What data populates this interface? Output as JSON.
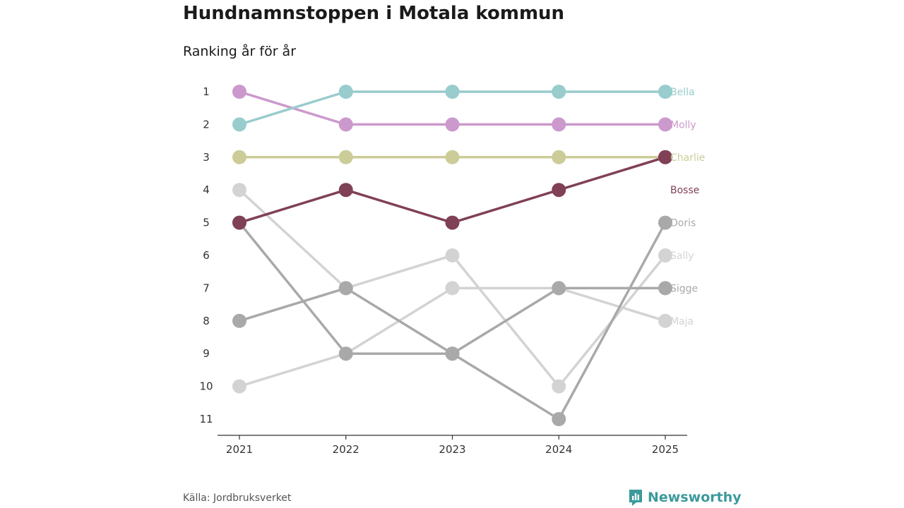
{
  "header": {
    "title": "Hundnamnstoppen i Motala kommun",
    "subtitle": "Ranking år för år"
  },
  "footer": {
    "source": "Källa: Jordbruksverket",
    "brand": "Newsworthy",
    "brand_icon": "newsworthy-logo-icon"
  },
  "colors": {
    "axis": "#333333",
    "background": "#ffffff",
    "brand": "#3c9a9b"
  },
  "chart_data": {
    "type": "line",
    "subtype": "bump",
    "title": "Hundnamnstoppen i Motala kommun",
    "subtitle": "Ranking år för år",
    "x": [
      "2021",
      "2022",
      "2023",
      "2024",
      "2025"
    ],
    "y_ticks": [
      1,
      2,
      3,
      4,
      5,
      6,
      7,
      8,
      9,
      10,
      11
    ],
    "ylim": [
      1,
      11
    ],
    "y_inverted": true,
    "xlabel": "",
    "ylabel": "",
    "grid": false,
    "series": [
      {
        "name": "Sally",
        "color": "#d3d3d3",
        "values": [
          4,
          7,
          6,
          10,
          6
        ]
      },
      {
        "name": "Maja",
        "color": "#d3d3d3",
        "values": [
          10,
          9,
          7,
          7,
          8
        ]
      },
      {
        "name": "Doris",
        "color": "#a9a9a9",
        "values": [
          5,
          9,
          9,
          11,
          5
        ]
      },
      {
        "name": "Sigge",
        "color": "#a9a9a9",
        "values": [
          8,
          7,
          9,
          7,
          7
        ]
      },
      {
        "name": "Charlie",
        "color": "#cccc99",
        "values": [
          3,
          3,
          3,
          3,
          3
        ]
      },
      {
        "name": "Molly",
        "color": "#cc99cc",
        "values": [
          1,
          2,
          2,
          2,
          2
        ]
      },
      {
        "name": "Bella",
        "color": "#99cccc",
        "values": [
          2,
          1,
          1,
          1,
          1
        ]
      },
      {
        "name": "Bosse",
        "color": "#804055",
        "values": [
          5,
          4,
          5,
          4,
          3
        ]
      }
    ],
    "end_labels": [
      {
        "name": "Bella",
        "rank": 1
      },
      {
        "name": "Molly",
        "rank": 2
      },
      {
        "name": "Charlie",
        "rank": 3
      },
      {
        "name": "Bosse",
        "rank": 4
      },
      {
        "name": "Doris",
        "rank": 5
      },
      {
        "name": "Sally",
        "rank": 6
      },
      {
        "name": "Sigge",
        "rank": 7
      },
      {
        "name": "Maja",
        "rank": 8
      }
    ]
  }
}
